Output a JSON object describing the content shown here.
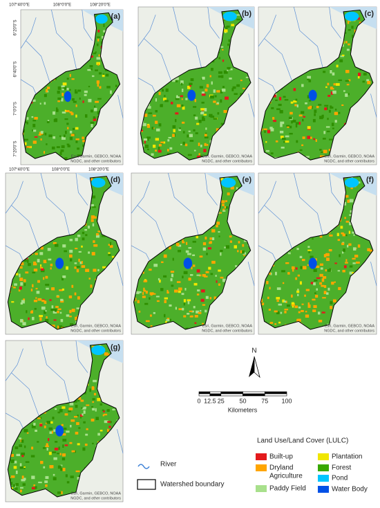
{
  "panels": [
    {
      "label": "(a)",
      "attribution": [
        "Esri, Garmin, GEBCO, NOAA",
        "NGDC, and other contributors"
      ]
    },
    {
      "label": "(b)",
      "attribution": [
        "Esri, Garmin, GEBCO, NOAA",
        "NGDC, and other contributors"
      ]
    },
    {
      "label": "(c)",
      "attribution": [
        "Esri, Garmin, GEBCO, NOAA",
        "NGDC, and other contributors"
      ]
    },
    {
      "label": "(d)",
      "attribution": [
        "Esri, Garmin, GEBCO, NOAA",
        "NGDC, and other contributors"
      ]
    },
    {
      "label": "(e)",
      "attribution": [
        "Esri, Garmin, GEBCO, NOAA",
        "NGDC, and other contributors"
      ]
    },
    {
      "label": "(f)",
      "attribution": [
        "Esri, Garmin, GEBCO, NOAA",
        "NGDC, and other contributors"
      ]
    },
    {
      "label": "(g)",
      "attribution": [
        "Esri, Garmin, GEBCO, NOAA",
        "NGDC, and other contributors"
      ]
    }
  ],
  "axes": {
    "top": [
      "107°40'0\"E",
      "108°0'0\"E",
      "108°20'0\"E"
    ],
    "left": [
      "6°20'0\"S",
      "6°40'0\"S",
      "7°0'0\"S",
      "7°20'0\"S"
    ],
    "bottom": [
      "107°40'0\"E",
      "108°0'0\"E",
      "108°20'0\"E"
    ]
  },
  "north": "N",
  "scale_bar": {
    "ticks": [
      0,
      12.5,
      25,
      50,
      75,
      100
    ],
    "unit": "Kilometers"
  },
  "legend": {
    "river": "River",
    "boundary": "Watershed boundary",
    "title": "Land Use/Land Cover (LULC)",
    "classes": [
      {
        "label_lines": [
          "Built-up"
        ],
        "color": "#e31a1c"
      },
      {
        "label_lines": [
          "Dryland",
          "Agriculture"
        ],
        "color": "#ffa500"
      },
      {
        "label_lines": [
          "Paddy Field"
        ],
        "color": "#a8e08c"
      },
      {
        "label_lines": [
          "Plantation"
        ],
        "color": "#f0e600"
      },
      {
        "label_lines": [
          "Forest"
        ],
        "color": "#38a800"
      },
      {
        "label_lines": [
          "Pond"
        ],
        "color": "#00c5ff"
      },
      {
        "label_lines": [
          "Water Body"
        ],
        "color": "#0050e6"
      }
    ]
  }
}
